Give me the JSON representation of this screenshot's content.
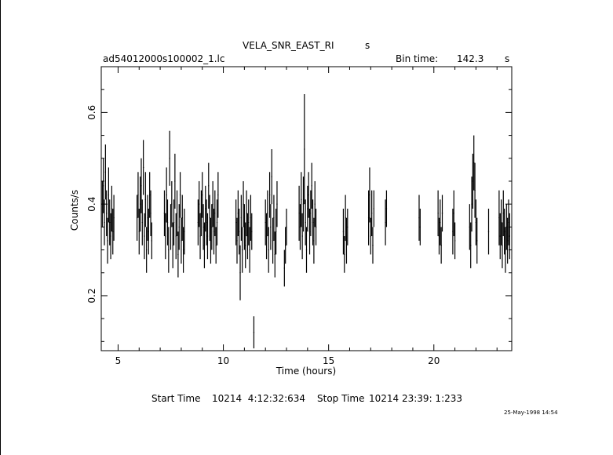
{
  "header": {
    "object_title": "VELA_SNR_EAST_RI",
    "title_suffix": "s",
    "filename": "ad54012000s100002_1.lc",
    "bin_time_label": "Bin time:",
    "bin_time_value": "142.3",
    "bin_time_unit": "s"
  },
  "footer": {
    "start_label": "Start Time",
    "start_value": "10214  4:12:32:634",
    "stop_label": "Stop Time",
    "stop_value": "10214 23:39: 1:233",
    "timestamp": "25-May-1998 14:54"
  },
  "colors": {
    "ink": "#000000",
    "background": "#ffffff"
  },
  "chart_data": {
    "type": "scatter",
    "style": "error bars (vertical lines), no markers",
    "xlabel": "Time (hours)",
    "ylabel": "Counts/s",
    "xlim": [
      4.2,
      23.7
    ],
    "ylim": [
      0.08,
      0.7
    ],
    "xticks": [
      5,
      10,
      15,
      20
    ],
    "xtick_labels": [
      "5",
      "10",
      "15",
      "20"
    ],
    "yticks": [
      0.2,
      0.4,
      0.6
    ],
    "ytick_labels": [
      "0.2",
      "0.4",
      "0.6"
    ],
    "grid": false,
    "legend": "none",
    "points": [
      [
        4.25,
        0.4,
        0.05
      ],
      [
        4.3,
        0.44,
        0.06
      ],
      [
        4.35,
        0.36,
        0.05
      ],
      [
        4.4,
        0.47,
        0.06
      ],
      [
        4.45,
        0.38,
        0.05
      ],
      [
        4.5,
        0.32,
        0.05
      ],
      [
        4.55,
        0.42,
        0.06
      ],
      [
        4.6,
        0.36,
        0.05
      ],
      [
        4.65,
        0.33,
        0.05
      ],
      [
        4.7,
        0.39,
        0.05
      ],
      [
        4.75,
        0.34,
        0.05
      ],
      [
        4.8,
        0.37,
        0.05
      ],
      [
        5.9,
        0.37,
        0.05
      ],
      [
        5.95,
        0.42,
        0.05
      ],
      [
        6.0,
        0.34,
        0.05
      ],
      [
        6.05,
        0.4,
        0.06
      ],
      [
        6.1,
        0.44,
        0.06
      ],
      [
        6.15,
        0.36,
        0.05
      ],
      [
        6.2,
        0.48,
        0.06
      ],
      [
        6.25,
        0.33,
        0.05
      ],
      [
        6.3,
        0.41,
        0.06
      ],
      [
        6.35,
        0.3,
        0.05
      ],
      [
        6.4,
        0.37,
        0.05
      ],
      [
        6.45,
        0.34,
        0.05
      ],
      [
        6.5,
        0.42,
        0.05
      ],
      [
        6.55,
        0.38,
        0.05
      ],
      [
        6.6,
        0.32,
        0.04
      ],
      [
        7.2,
        0.38,
        0.05
      ],
      [
        7.25,
        0.33,
        0.05
      ],
      [
        7.3,
        0.42,
        0.06
      ],
      [
        7.35,
        0.36,
        0.05
      ],
      [
        7.4,
        0.3,
        0.05
      ],
      [
        7.45,
        0.5,
        0.06
      ],
      [
        7.5,
        0.35,
        0.05
      ],
      [
        7.55,
        0.4,
        0.05
      ],
      [
        7.6,
        0.31,
        0.05
      ],
      [
        7.65,
        0.36,
        0.05
      ],
      [
        7.7,
        0.45,
        0.06
      ],
      [
        7.75,
        0.33,
        0.05
      ],
      [
        7.8,
        0.38,
        0.05
      ],
      [
        7.85,
        0.29,
        0.05
      ],
      [
        7.9,
        0.35,
        0.05
      ],
      [
        7.95,
        0.42,
        0.05
      ],
      [
        8.0,
        0.32,
        0.05
      ],
      [
        8.05,
        0.37,
        0.05
      ],
      [
        8.1,
        0.3,
        0.05
      ],
      [
        8.15,
        0.34,
        0.05
      ],
      [
        8.8,
        0.36,
        0.05
      ],
      [
        8.85,
        0.4,
        0.05
      ],
      [
        8.9,
        0.33,
        0.05
      ],
      [
        8.95,
        0.38,
        0.05
      ],
      [
        9.0,
        0.42,
        0.05
      ],
      [
        9.05,
        0.35,
        0.05
      ],
      [
        9.1,
        0.31,
        0.05
      ],
      [
        9.15,
        0.39,
        0.05
      ],
      [
        9.2,
        0.36,
        0.05
      ],
      [
        9.25,
        0.33,
        0.05
      ],
      [
        9.3,
        0.44,
        0.05
      ],
      [
        9.35,
        0.37,
        0.05
      ],
      [
        9.4,
        0.32,
        0.05
      ],
      [
        9.45,
        0.35,
        0.05
      ],
      [
        9.5,
        0.4,
        0.05
      ],
      [
        9.55,
        0.34,
        0.05
      ],
      [
        9.6,
        0.38,
        0.05
      ],
      [
        9.65,
        0.31,
        0.04
      ],
      [
        9.7,
        0.36,
        0.05
      ],
      [
        9.75,
        0.42,
        0.05
      ],
      [
        10.6,
        0.36,
        0.05
      ],
      [
        10.65,
        0.32,
        0.05
      ],
      [
        10.7,
        0.38,
        0.05
      ],
      [
        10.75,
        0.34,
        0.05
      ],
      [
        10.8,
        0.25,
        0.06
      ],
      [
        10.85,
        0.37,
        0.05
      ],
      [
        10.9,
        0.3,
        0.05
      ],
      [
        10.95,
        0.4,
        0.05
      ],
      [
        11.0,
        0.35,
        0.05
      ],
      [
        11.05,
        0.31,
        0.05
      ],
      [
        11.1,
        0.38,
        0.05
      ],
      [
        11.15,
        0.33,
        0.05
      ],
      [
        11.2,
        0.36,
        0.05
      ],
      [
        11.25,
        0.3,
        0.05
      ],
      [
        11.3,
        0.37,
        0.05
      ],
      [
        11.35,
        0.34,
        0.04
      ],
      [
        11.45,
        0.12,
        0.035
      ],
      [
        12.0,
        0.36,
        0.05
      ],
      [
        12.05,
        0.33,
        0.05
      ],
      [
        12.1,
        0.38,
        0.05
      ],
      [
        12.15,
        0.3,
        0.05
      ],
      [
        12.2,
        0.42,
        0.05
      ],
      [
        12.25,
        0.35,
        0.05
      ],
      [
        12.3,
        0.46,
        0.06
      ],
      [
        12.35,
        0.32,
        0.05
      ],
      [
        12.4,
        0.37,
        0.05
      ],
      [
        12.45,
        0.29,
        0.05
      ],
      [
        12.5,
        0.34,
        0.05
      ],
      [
        12.55,
        0.4,
        0.05
      ],
      [
        12.9,
        0.26,
        0.04
      ],
      [
        12.95,
        0.31,
        0.04
      ],
      [
        13.0,
        0.35,
        0.04
      ],
      [
        13.6,
        0.38,
        0.06
      ],
      [
        13.65,
        0.35,
        0.05
      ],
      [
        13.7,
        0.41,
        0.06
      ],
      [
        13.75,
        0.33,
        0.05
      ],
      [
        13.8,
        0.4,
        0.06
      ],
      [
        13.85,
        0.52,
        0.12
      ],
      [
        13.9,
        0.36,
        0.05
      ],
      [
        13.95,
        0.3,
        0.05
      ],
      [
        14.0,
        0.39,
        0.05
      ],
      [
        14.05,
        0.42,
        0.05
      ],
      [
        14.1,
        0.34,
        0.05
      ],
      [
        14.15,
        0.38,
        0.05
      ],
      [
        14.2,
        0.44,
        0.05
      ],
      [
        14.25,
        0.36,
        0.05
      ],
      [
        14.3,
        0.32,
        0.05
      ],
      [
        14.35,
        0.4,
        0.05
      ],
      [
        14.4,
        0.35,
        0.04
      ],
      [
        15.7,
        0.34,
        0.05
      ],
      [
        15.75,
        0.29,
        0.04
      ],
      [
        15.8,
        0.37,
        0.05
      ],
      [
        15.85,
        0.32,
        0.05
      ],
      [
        15.9,
        0.35,
        0.04
      ],
      [
        16.9,
        0.37,
        0.06
      ],
      [
        16.95,
        0.42,
        0.06
      ],
      [
        17.0,
        0.33,
        0.04
      ],
      [
        17.05,
        0.38,
        0.05
      ],
      [
        17.1,
        0.31,
        0.04
      ],
      [
        17.15,
        0.39,
        0.04
      ],
      [
        17.7,
        0.36,
        0.05
      ],
      [
        17.75,
        0.39,
        0.04
      ],
      [
        19.3,
        0.37,
        0.05
      ],
      [
        19.35,
        0.35,
        0.04
      ],
      [
        20.2,
        0.38,
        0.05
      ],
      [
        20.25,
        0.33,
        0.04
      ],
      [
        20.3,
        0.36,
        0.05
      ],
      [
        20.35,
        0.31,
        0.04
      ],
      [
        20.4,
        0.38,
        0.04
      ],
      [
        20.9,
        0.34,
        0.05
      ],
      [
        20.95,
        0.38,
        0.05
      ],
      [
        21.0,
        0.32,
        0.04
      ],
      [
        21.7,
        0.35,
        0.05
      ],
      [
        21.75,
        0.31,
        0.05
      ],
      [
        21.8,
        0.4,
        0.06
      ],
      [
        21.85,
        0.45,
        0.06
      ],
      [
        21.9,
        0.49,
        0.06
      ],
      [
        21.95,
        0.43,
        0.06
      ],
      [
        22.0,
        0.36,
        0.05
      ],
      [
        22.05,
        0.32,
        0.05
      ],
      [
        22.6,
        0.34,
        0.05
      ],
      [
        23.1,
        0.37,
        0.06
      ],
      [
        23.15,
        0.33,
        0.05
      ],
      [
        23.2,
        0.36,
        0.05
      ],
      [
        23.25,
        0.31,
        0.05
      ],
      [
        23.3,
        0.38,
        0.05
      ],
      [
        23.35,
        0.34,
        0.05
      ],
      [
        23.4,
        0.3,
        0.05
      ],
      [
        23.45,
        0.35,
        0.05
      ],
      [
        23.5,
        0.32,
        0.05
      ],
      [
        23.55,
        0.36,
        0.05
      ],
      [
        23.6,
        0.33,
        0.05
      ]
    ]
  }
}
